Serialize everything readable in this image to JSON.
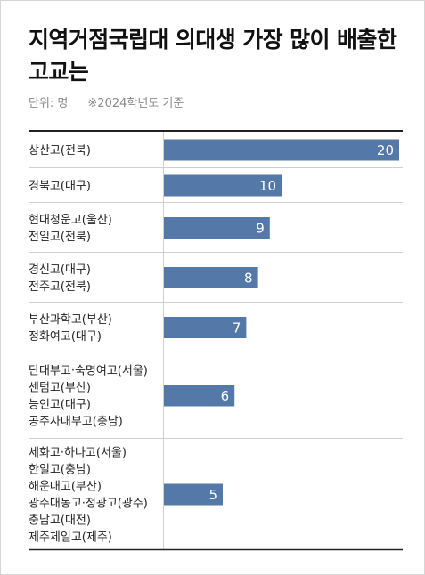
{
  "title": "지역거점국립대 의대생 가장 많이 배출한 고교는",
  "unit_note": "단위: 명",
  "year_note": "※2024학년도 기준",
  "colors": {
    "bar": "#5479a8",
    "rule": "#222222",
    "row_line": "#cfcfcf",
    "value_text": "#ffffff"
  },
  "chart_data": {
    "type": "bar",
    "orientation": "horizontal",
    "xlim": [
      0,
      20
    ],
    "grid": false,
    "categories": [
      [
        "상산고(전북)"
      ],
      [
        "경북고(대구)"
      ],
      [
        "현대청운고(울산)",
        "전일고(전북)"
      ],
      [
        "경신고(대구)",
        "전주고(전북)"
      ],
      [
        "부산과학고(부산)",
        "정화여고(대구)"
      ],
      [
        "단대부고·숙명여고(서울)",
        "센텀고(부산)",
        "능인고(대구)",
        "공주사대부고(충남)"
      ],
      [
        "세화고·하나고(서울)",
        "한일고(충남)",
        "해운대고(부산)",
        "광주대동고·정광고(광주)",
        "충남고(대전)",
        "제주제일고(제주)"
      ]
    ],
    "values": [
      20,
      10,
      9,
      8,
      7,
      6,
      5
    ],
    "value_labels": [
      "20",
      "10",
      "9",
      "8",
      "7",
      "6",
      "5"
    ]
  }
}
